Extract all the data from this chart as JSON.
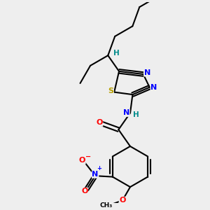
{
  "bg_color": "#eeeeee",
  "bond_color": "#000000",
  "atom_colors": {
    "N": "#0000ff",
    "S": "#b8a000",
    "O": "#ff0000",
    "H": "#008b8b",
    "C": "#000000"
  }
}
